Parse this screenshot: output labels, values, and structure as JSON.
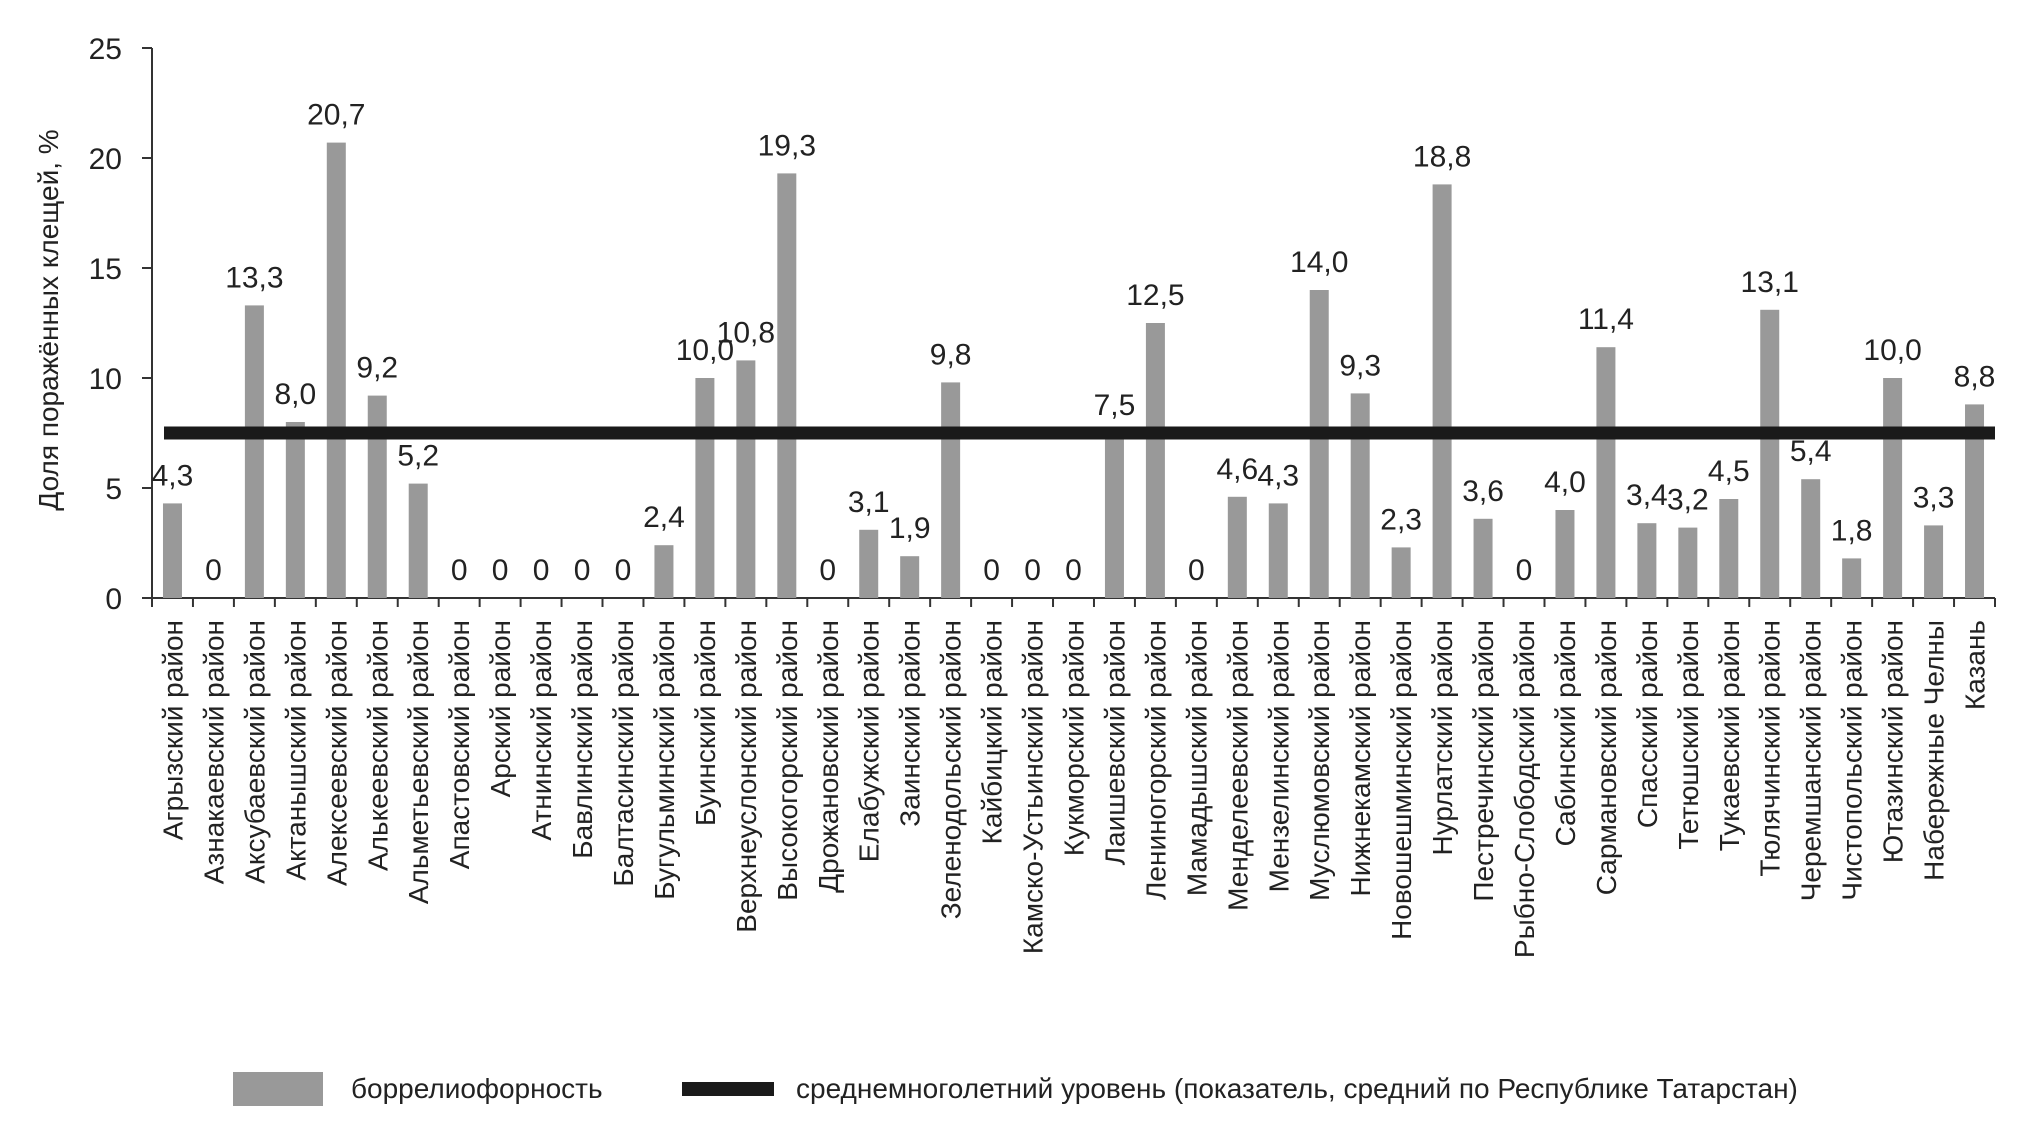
{
  "chart_data": {
    "type": "bar",
    "ylabel": "Доля поражённых клещей, %",
    "xlabel": "",
    "ylim": [
      0,
      25
    ],
    "yticks": [
      "0",
      "5",
      "10",
      "15",
      "20",
      "25"
    ],
    "categories": [
      "Агрызский район",
      "Азнакаевский район",
      "Аксубаевский район",
      "Актанышский район",
      "Алексеевский район",
      "Алькеевский район",
      "Альметьевский район",
      "Апастовский район",
      "Арский район",
      "Атнинский район",
      "Бавлинский район",
      "Балтасинский район",
      "Бугульминский район",
      "Буинский район",
      "Верхнеуслонский район",
      "Высокогорский район",
      "Дрожановский район",
      "Елабужский район",
      "Заинский район",
      "Зеленодольский район",
      "Кайбицкий район",
      "Камско-Устьинский район",
      "Кукморский район",
      "Лаишевский район",
      "Лениногорский район",
      "Мамадышский район",
      "Менделеевский район",
      "Мензелинский район",
      "Муслюмовский район",
      "Нижнекамский район",
      "Новошешминский район",
      "Нурлатский район",
      "Пестречинский район",
      "Рыбно-Слободский район",
      "Сабинский район",
      "Сармановский район",
      "Спасский район",
      "Тетюшский район",
      "Тукаевский район",
      "Тюлячинский район",
      "Черемшанский район",
      "Чистопольский район",
      "Ютазинский район",
      "Набережные Челны",
      "Казань"
    ],
    "series": [
      {
        "name": "боррелиофорность",
        "color": "#999999",
        "values": [
          4.3,
          0,
          13.3,
          8.0,
          20.7,
          9.2,
          5.2,
          0,
          0,
          0,
          0,
          0,
          2.4,
          10.0,
          10.8,
          19.3,
          0,
          3.1,
          1.9,
          9.8,
          0,
          0,
          0,
          7.5,
          12.5,
          0,
          4.6,
          4.3,
          14.0,
          9.3,
          2.3,
          18.8,
          3.6,
          0,
          4.0,
          11.4,
          3.4,
          3.2,
          4.5,
          13.1,
          5.4,
          1.8,
          10.0,
          3.3,
          8.8
        ],
        "labels": [
          "4,3",
          "0",
          "13,3",
          "8,0",
          "20,7",
          "9,2",
          "5,2",
          "0",
          "0",
          "0",
          "0",
          "0",
          "2,4",
          "10,0",
          "10,8",
          "19,3",
          "0",
          "3,1",
          "1,9",
          "9,8",
          "0",
          "0",
          "0",
          "7,5",
          "12,5",
          "0",
          "4,6",
          "4,3",
          "14,0",
          "9,3",
          "2,3",
          "18,8",
          "3,6",
          "0",
          "4,0",
          "11,4",
          "3,4",
          "3,2",
          "4,5",
          "13,1",
          "5,4",
          "1,8",
          "10,0",
          "3,3",
          "8,8"
        ]
      }
    ],
    "reference_line": {
      "name": "среднемноголетний уровень (показатель, средний по Республике Татарстан)",
      "value": 7.5,
      "color": "#1a1a1a"
    },
    "legend": {
      "position": "bottom",
      "bar_label": "боррелиофорность",
      "line_label": "среднемноголетний уровень (показатель, средний по Республике Татарстан)"
    }
  }
}
